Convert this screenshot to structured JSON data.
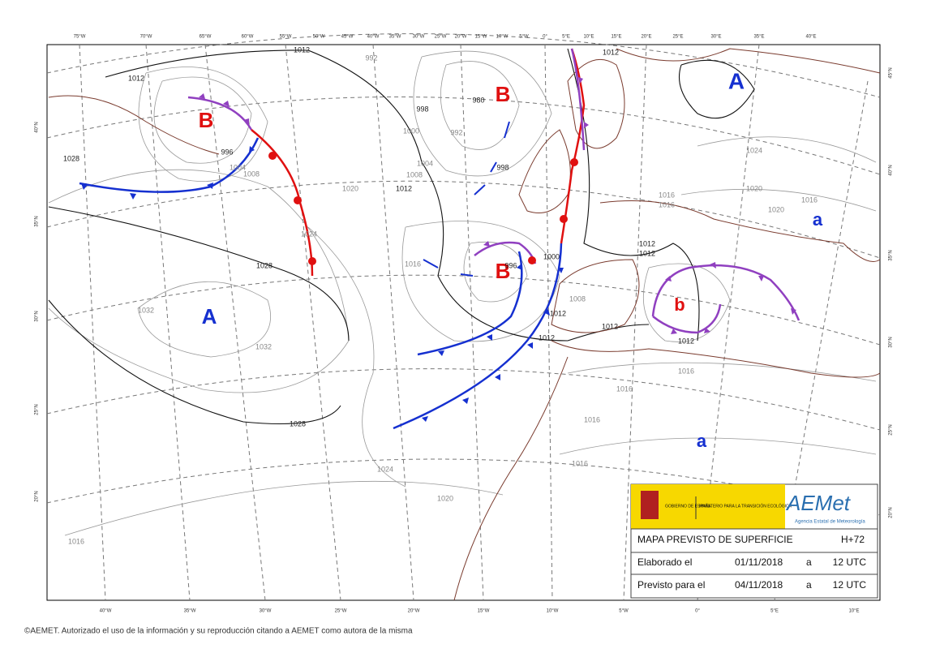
{
  "map": {
    "top_lon_labels": [
      "75°W",
      "70°W",
      "65°W",
      "60°W",
      "55°W",
      "50°W",
      "45°W",
      "40°W",
      "35°W",
      "30°W",
      "25°W",
      "20°W",
      "15°W",
      "10°W",
      "5°W",
      "0°",
      "5°E",
      "10°E",
      "15°E",
      "20°E",
      "25°E",
      "30°E",
      "35°E",
      "40°E"
    ],
    "bottom_lon_labels": [
      "40°W",
      "35°W",
      "30°W",
      "25°W",
      "20°W",
      "15°W",
      "10°W",
      "5°W",
      "0°",
      "5°E",
      "10°E"
    ],
    "left_lat_labels": [
      "40°N",
      "35°N",
      "30°N",
      "25°N",
      "20°N"
    ],
    "right_lat_labels": [
      "45°N",
      "40°N",
      "35°N",
      "30°N",
      "25°N",
      "20°N"
    ],
    "pressure_centers": [
      {
        "label": "B",
        "kind": "low"
      },
      {
        "label": "B",
        "kind": "low"
      },
      {
        "label": "B",
        "kind": "low"
      },
      {
        "label": "A",
        "kind": "high"
      },
      {
        "label": "A",
        "kind": "high"
      },
      {
        "label": "a",
        "kind": "high"
      },
      {
        "label": "a",
        "kind": "high"
      },
      {
        "label": "b",
        "kind": "low"
      }
    ],
    "isobar_labels": [
      "1012",
      "1012",
      "992",
      "998",
      "1000",
      "992",
      "980",
      "996",
      "1004",
      "1008",
      "1028",
      "1020",
      "1012",
      "1008",
      "1004",
      "998",
      "1024",
      "1028",
      "1016",
      "996",
      "1000",
      "1012",
      "1012",
      "1012",
      "1012",
      "1012",
      "1016",
      "1016",
      "1024",
      "1020",
      "1020",
      "1016",
      "1012",
      "1016",
      "1016",
      "1016",
      "1016",
      "1024",
      "1020",
      "1016",
      "1028",
      "1032",
      "1032",
      "1008",
      "1012"
    ],
    "info_box": {
      "government": "GOBIERNO DE ESPAÑA",
      "ministry": "MINISTERIO PARA LA TRANSICIÓN ECOLÓGICA",
      "logo": "AEMet",
      "agency": "Agencia Estatal de Meteorología",
      "title": "MAPA PREVISTO DE SUPERFICIE",
      "lead": "H+72",
      "made_label": "Elaborado el",
      "made_date": "01/11/2018",
      "made_at": "a",
      "made_time": "12 UTC",
      "valid_label": "Previsto para el",
      "valid_date": "04/11/2018",
      "valid_at": "a",
      "valid_time": "12 UTC"
    },
    "footer": "©AEMET. Autorizado el uso de la información y su reproducción citando a AEMET como autora de la misma"
  }
}
